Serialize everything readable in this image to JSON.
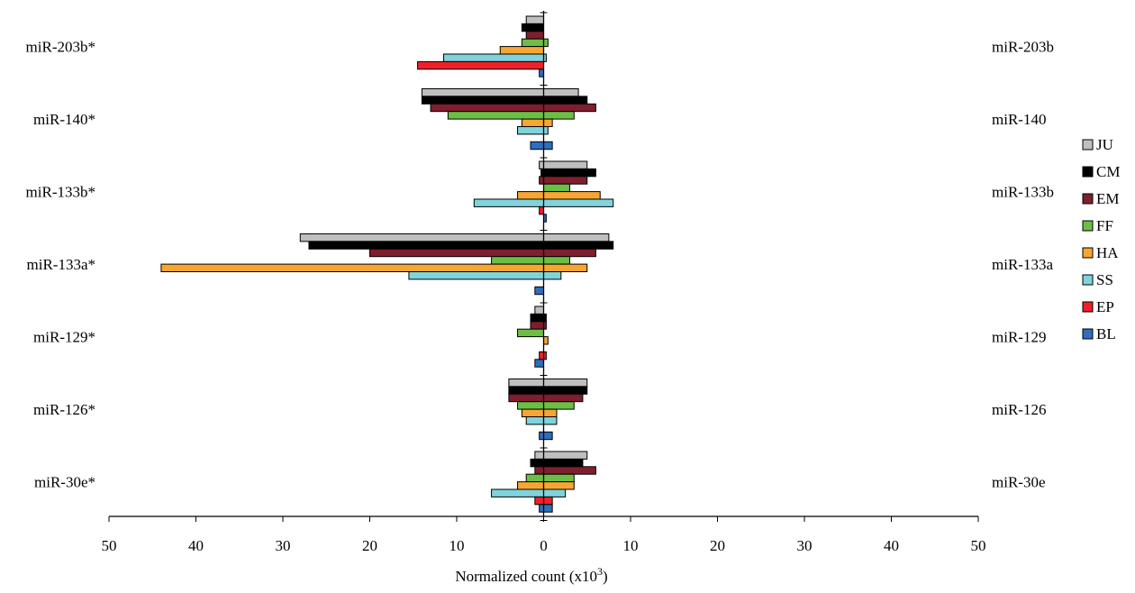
{
  "chart_data": {
    "type": "bar",
    "orientation": "horizontal",
    "layout": "back-to-back",
    "xlabel": "Normalized count (x10",
    "xlabel_superscript": "3",
    "xlabel_suffix": ")",
    "xlim": [
      -50,
      50
    ],
    "x_ticks": [
      -50,
      -40,
      -30,
      -20,
      -10,
      0,
      10,
      20,
      30,
      40,
      50
    ],
    "x_tick_labels": [
      "50",
      "40",
      "30",
      "20",
      "10",
      "0",
      "10",
      "20",
      "30",
      "40",
      "50"
    ],
    "grid": false,
    "legend_position": "right",
    "left_categories": [
      "miR-203b*",
      "miR-140*",
      "miR-133b*",
      "miR-133a*",
      "miR-129*",
      "miR-126*",
      "miR-30e*"
    ],
    "right_categories": [
      "miR-203b",
      "miR-140",
      "miR-133b",
      "miR-133a",
      "miR-129",
      "miR-126",
      "miR-30e"
    ],
    "series": [
      {
        "name": "JU",
        "color": "#bfbfbf",
        "left": [
          2,
          14,
          0.5,
          28,
          1,
          4,
          1
        ],
        "right": [
          0,
          4,
          5,
          7.5,
          0,
          5,
          5
        ]
      },
      {
        "name": "CM",
        "color": "#000000",
        "left": [
          2.5,
          14,
          0.3,
          27,
          1.5,
          4,
          1.5
        ],
        "right": [
          0,
          5,
          6,
          8,
          0.3,
          5,
          4.5
        ]
      },
      {
        "name": "EM",
        "color": "#7f1f2e",
        "left": [
          2,
          13,
          0.5,
          20,
          1.5,
          4,
          1
        ],
        "right": [
          0,
          6,
          5,
          6,
          0.3,
          4.5,
          6
        ]
      },
      {
        "name": "FF",
        "color": "#6cbf45",
        "left": [
          2.5,
          11,
          0,
          6,
          3,
          3,
          2
        ],
        "right": [
          0.5,
          3.5,
          3,
          3,
          0,
          3.5,
          3.5
        ]
      },
      {
        "name": "HA",
        "color": "#f7a533",
        "left": [
          5,
          2.5,
          3,
          44,
          0,
          2.5,
          3
        ],
        "right": [
          0,
          1,
          6.5,
          5,
          0.5,
          1.5,
          3.5
        ]
      },
      {
        "name": "SS",
        "color": "#7fd3dc",
        "left": [
          11.5,
          3,
          8,
          15.5,
          0,
          2,
          6
        ],
        "right": [
          0.3,
          0.5,
          8,
          2,
          0,
          1.5,
          2.5
        ]
      },
      {
        "name": "EP",
        "color": "#f0202a",
        "left": [
          14.5,
          0,
          0.5,
          0,
          0.5,
          0,
          1
        ],
        "right": [
          0,
          0,
          0,
          0,
          0.3,
          0,
          1
        ]
      },
      {
        "name": "BL",
        "color": "#2e6fbd",
        "left": [
          0.5,
          1.5,
          0,
          1,
          1,
          0.5,
          0.5
        ],
        "right": [
          0,
          1,
          0.3,
          0,
          0,
          1,
          1
        ]
      }
    ]
  }
}
